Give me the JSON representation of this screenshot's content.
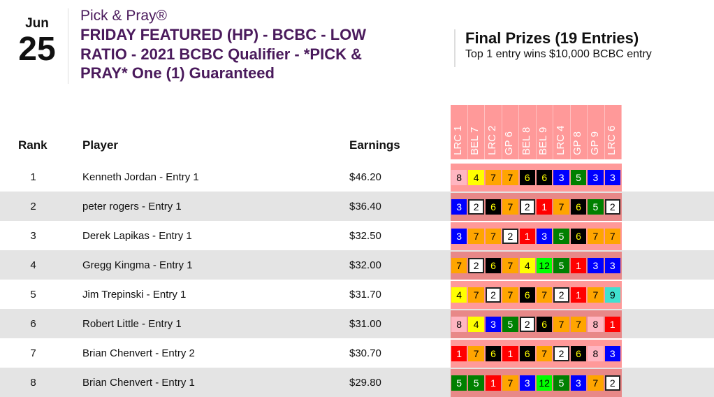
{
  "date": {
    "month": "Jun",
    "day": "25"
  },
  "title": {
    "brand": "Pick & Pray®",
    "lines": [
      "FRIDAY FEATURED (HP) - BCBC - LOW",
      "RATIO - 2021 BCBC Qualifier - *PICK &",
      "PRAY* One (1) Guaranteed"
    ]
  },
  "prizes": {
    "heading": "Final Prizes (19 Entries)",
    "subtitle": "Top 1 entry wins $10,000 BCBC entry"
  },
  "columns": {
    "rank": "Rank",
    "player": "Player",
    "earnings": "Earnings"
  },
  "races": [
    "LRC 1",
    "BEL 7",
    "LRC 2",
    "GP 6",
    "BEL 8",
    "BEL 9",
    "LRC 4",
    "GP 8",
    "GP 9",
    "LRC 6"
  ],
  "saddle_colors": {
    "1": {
      "bg": "#ff0000",
      "fg": "#ffffff"
    },
    "2": {
      "bg": "#ffffff",
      "fg": "#000000",
      "border": "#222222"
    },
    "3": {
      "bg": "#0000ff",
      "fg": "#ffffff"
    },
    "4": {
      "bg": "#ffff00",
      "fg": "#000000"
    },
    "5": {
      "bg": "#008000",
      "fg": "#ffffff"
    },
    "6": {
      "bg": "#000000",
      "fg": "#ffff00"
    },
    "7": {
      "bg": "#ffa500",
      "fg": "#000000"
    },
    "8": {
      "bg": "#ffb6c1",
      "fg": "#000000"
    },
    "9": {
      "bg": "#40e0d0",
      "fg": "#000000"
    },
    "12": {
      "bg": "#00ff00",
      "fg": "#000000"
    }
  },
  "rows": [
    {
      "rank": "1",
      "player": "Kenneth Jordan - Entry 1",
      "earnings": "$46.20",
      "picks": [
        "8",
        "4",
        "7",
        "7",
        "6",
        "6",
        "3",
        "5",
        "3",
        "3"
      ]
    },
    {
      "rank": "2",
      "player": "peter rogers - Entry 1",
      "earnings": "$36.40",
      "picks": [
        "3",
        "2",
        "6",
        "7",
        "2",
        "1",
        "7",
        "6",
        "5",
        "2"
      ]
    },
    {
      "rank": "3",
      "player": "Derek Lapikas - Entry 1",
      "earnings": "$32.50",
      "picks": [
        "3",
        "7",
        "7",
        "2",
        "1",
        "3",
        "5",
        "6",
        "7",
        "7"
      ]
    },
    {
      "rank": "4",
      "player": "Gregg Kingma - Entry 1",
      "earnings": "$32.00",
      "picks": [
        "7",
        "2",
        "6",
        "7",
        "4",
        "12",
        "5",
        "1",
        "3",
        "3"
      ]
    },
    {
      "rank": "5",
      "player": "Jim Trepinski - Entry 1",
      "earnings": "$31.70",
      "picks": [
        "4",
        "7",
        "2",
        "7",
        "6",
        "7",
        "2",
        "1",
        "7",
        "9"
      ]
    },
    {
      "rank": "6",
      "player": "Robert Little - Entry 1",
      "earnings": "$31.00",
      "picks": [
        "8",
        "4",
        "3",
        "5",
        "2",
        "6",
        "7",
        "7",
        "8",
        "1"
      ]
    },
    {
      "rank": "7",
      "player": "Brian Chenvert - Entry 2",
      "earnings": "$30.70",
      "picks": [
        "1",
        "7",
        "6",
        "1",
        "6",
        "7",
        "2",
        "6",
        "8",
        "3"
      ]
    },
    {
      "rank": "8",
      "player": "Brian Chenvert - Entry 1",
      "earnings": "$29.80",
      "picks": [
        "5",
        "5",
        "1",
        "7",
        "3",
        "12",
        "5",
        "3",
        "7",
        "2"
      ]
    }
  ]
}
